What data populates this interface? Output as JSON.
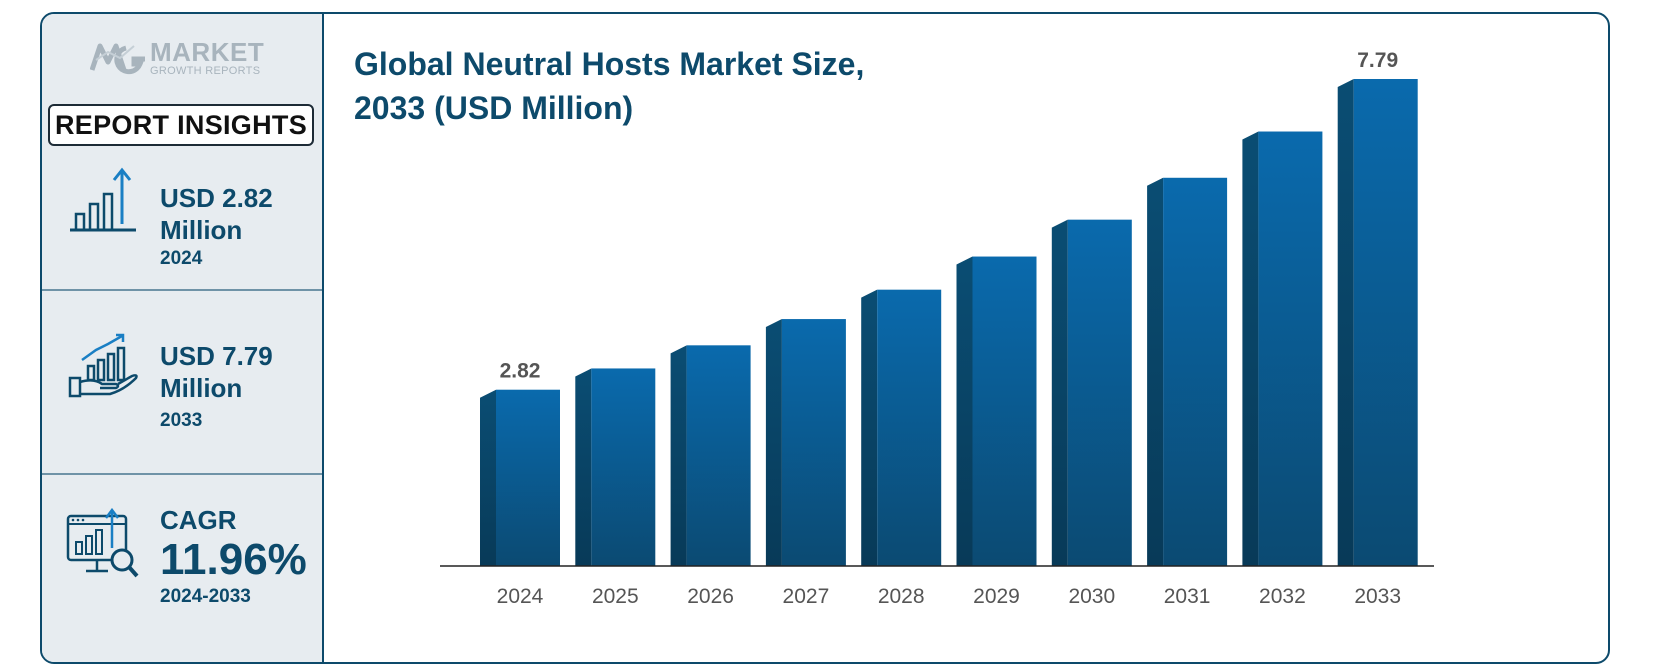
{
  "logo": {
    "line1": "MARKET",
    "line2": "GROWTH REPORTS"
  },
  "sidebar": {
    "badge": "REPORT INSIGHTS",
    "kpis": [
      {
        "icon": "bar-growth-icon",
        "line1": "USD 2.82",
        "line2": "Million",
        "line3": "2024"
      },
      {
        "icon": "hand-chart-icon",
        "line1": "USD 7.79",
        "line2": "Million",
        "line3": "2033"
      },
      {
        "icon": "monitor-analytics-icon",
        "line1": "CAGR",
        "line2": "11.96%",
        "line3": "2024-2033"
      }
    ]
  },
  "colors": {
    "primary": "#0d4a6b",
    "bar_front_top": "#0a6aad",
    "bar_front_bottom": "#0b4a72",
    "bar_side": "#0a4d73",
    "label": "#555555"
  },
  "chart_data": {
    "type": "bar",
    "title": "Global Neutral Hosts Market Size, 2033 (USD Million)",
    "title_lines": [
      "Global Neutral Hosts Market Size,",
      "2033 (USD Million)"
    ],
    "categories": [
      "2024",
      "2025",
      "2026",
      "2027",
      "2028",
      "2029",
      "2030",
      "2031",
      "2032",
      "2033"
    ],
    "values": [
      2.82,
      3.16,
      3.53,
      3.95,
      4.42,
      4.95,
      5.54,
      6.21,
      6.95,
      7.79
    ],
    "data_labels": [
      {
        "category": "2024",
        "text": "2.82"
      },
      {
        "category": "2033",
        "text": "7.79"
      }
    ],
    "xlabel": "",
    "ylabel": "",
    "ylim": [
      0,
      7.79
    ],
    "grid": false
  }
}
